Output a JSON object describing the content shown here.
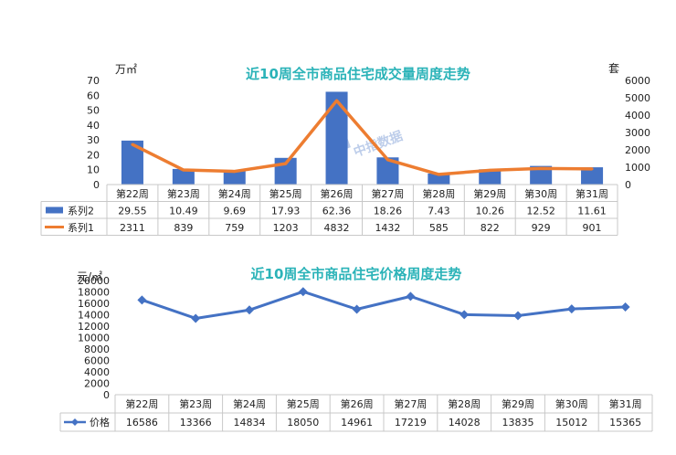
{
  "chart_data": [
    {
      "type": "bar",
      "title": "近10周全市商品住宅成交量周度走势",
      "categories": [
        "第22周",
        "第23周",
        "第24周",
        "第25周",
        "第26周",
        "第27周",
        "第28周",
        "第29周",
        "第30周",
        "第31周"
      ],
      "ylabel": "万㎡",
      "y2label": "套",
      "ylim": [
        0,
        70
      ],
      "y2lim": [
        0,
        6000
      ],
      "y_ticks": [
        "0",
        "10",
        "20",
        "30",
        "40",
        "50",
        "60",
        "70"
      ],
      "y2_ticks": [
        "0",
        "1000",
        "2000",
        "3000",
        "4000",
        "5000",
        "6000"
      ],
      "series": [
        {
          "name": "系列2",
          "type": "bar",
          "axis": "left",
          "color": "#4472c4",
          "values": [
            29.55,
            10.49,
            9.69,
            17.93,
            62.36,
            18.26,
            7.43,
            10.26,
            12.52,
            11.61
          ]
        },
        {
          "name": "系列1",
          "type": "line",
          "axis": "right",
          "color": "#ed7d31",
          "values": [
            2311,
            839,
            759,
            1203,
            4832,
            1432,
            585,
            822,
            929,
            901
          ]
        }
      ],
      "data_table": true,
      "watermark": "中指数据"
    },
    {
      "type": "line",
      "title": "近10周全市商品住宅价格周度走势",
      "categories": [
        "第22周",
        "第23周",
        "第24周",
        "第25周",
        "第26周",
        "第27周",
        "第28周",
        "第29周",
        "第30周",
        "第31周"
      ],
      "ylabel": "元/㎡",
      "ylim": [
        0,
        20000
      ],
      "y_ticks": [
        "0",
        "2000",
        "4000",
        "6000",
        "8000",
        "10000",
        "12000",
        "14000",
        "16000",
        "18000",
        "20000"
      ],
      "series": [
        {
          "name": "价格",
          "type": "line",
          "color": "#4472c4",
          "values": [
            16586,
            13366,
            14834,
            18050,
            14961,
            17219,
            14028,
            13835,
            15012,
            15365
          ]
        }
      ],
      "data_table": true
    }
  ]
}
